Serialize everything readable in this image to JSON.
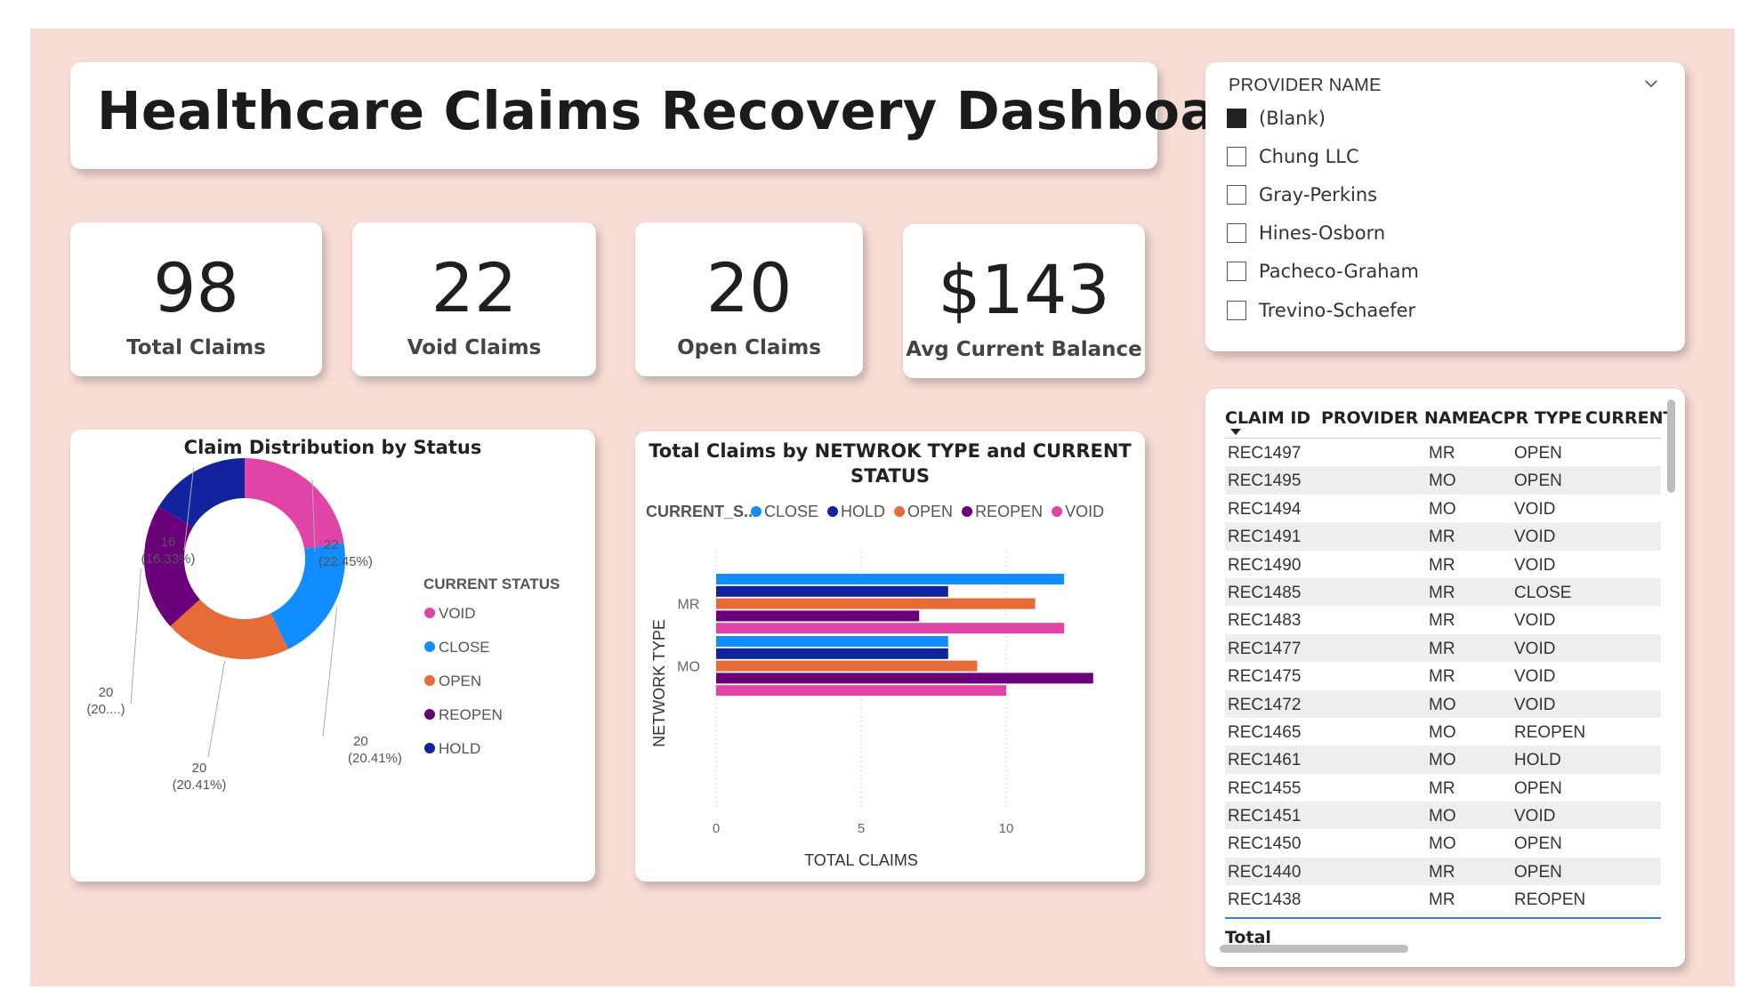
{
  "title": "Healthcare Claims Recovery Dashboard",
  "kpis": [
    {
      "value": "98",
      "label": "Total Claims"
    },
    {
      "value": "22",
      "label": "Void Claims"
    },
    {
      "value": "20",
      "label": "Open Claims"
    },
    {
      "value": "$143",
      "label": "Avg Current Balance"
    }
  ],
  "slicer": {
    "title": "PROVIDER NAME",
    "items": [
      {
        "label": "(Blank)",
        "checked": true
      },
      {
        "label": "Chung LLC",
        "checked": false
      },
      {
        "label": "Gray-Perkins",
        "checked": false
      },
      {
        "label": "Hines-Osborn",
        "checked": false
      },
      {
        "label": "Pacheco-Graham",
        "checked": false
      },
      {
        "label": "Trevino-Schaefer",
        "checked": false
      }
    ]
  },
  "colors": {
    "VOID": "#e044a7",
    "CLOSE": "#118dff",
    "OPEN": "#e66c37",
    "REOPEN": "#6b007b",
    "HOLD": "#12239e",
    "background": "#f8ddd6"
  },
  "chart_data": [
    {
      "type": "pie",
      "title": "Claim Distribution by Status",
      "legend_title": "CURRENT STATUS",
      "legend_position": "right",
      "slices": [
        {
          "name": "VOID",
          "value": 22,
          "label": "22",
          "pct_label": "(22.45%)"
        },
        {
          "name": "CLOSE",
          "value": 20,
          "label": "20",
          "pct_label": "(20.41%)"
        },
        {
          "name": "OPEN",
          "value": 20,
          "label": "20",
          "pct_label": "(20.41%)"
        },
        {
          "name": "REOPEN",
          "value": 20,
          "label": "20",
          "pct_label": "(20....)"
        },
        {
          "name": "HOLD",
          "value": 16,
          "label": "16",
          "pct_label": "(16.33%)"
        }
      ]
    },
    {
      "type": "bar",
      "orientation": "horizontal",
      "title": "Total Claims by NETWROK TYPE and CURRENT STATUS",
      "legend_title": "CURRENT_S...",
      "legend_position": "top",
      "xlabel": "TOTAL CLAIMS",
      "ylabel": "NETWORK TYPE",
      "xlim": [
        0,
        13.5
      ],
      "xticks": [
        "0",
        "5",
        "10"
      ],
      "grid": true,
      "categories": [
        "MR",
        "MO"
      ],
      "series": [
        {
          "name": "CLOSE",
          "values": [
            12,
            8
          ]
        },
        {
          "name": "HOLD",
          "values": [
            8,
            8
          ]
        },
        {
          "name": "OPEN",
          "values": [
            11,
            9
          ]
        },
        {
          "name": "REOPEN",
          "values": [
            7,
            13
          ]
        },
        {
          "name": "VOID",
          "values": [
            12,
            10
          ]
        }
      ]
    }
  ],
  "table": {
    "columns": [
      "CLAIM ID",
      "PROVIDER NAME",
      "ACPR TYPE",
      "CURRENT"
    ],
    "rows": [
      [
        "REC1497",
        "",
        "MR",
        "OPEN"
      ],
      [
        "REC1495",
        "",
        "MO",
        "OPEN"
      ],
      [
        "REC1494",
        "",
        "MO",
        "VOID"
      ],
      [
        "REC1491",
        "",
        "MR",
        "VOID"
      ],
      [
        "REC1490",
        "",
        "MR",
        "VOID"
      ],
      [
        "REC1485",
        "",
        "MR",
        "CLOSE"
      ],
      [
        "REC1483",
        "",
        "MR",
        "VOID"
      ],
      [
        "REC1477",
        "",
        "MR",
        "VOID"
      ],
      [
        "REC1475",
        "",
        "MR",
        "VOID"
      ],
      [
        "REC1472",
        "",
        "MO",
        "VOID"
      ],
      [
        "REC1465",
        "",
        "MO",
        "REOPEN"
      ],
      [
        "REC1461",
        "",
        "MO",
        "HOLD"
      ],
      [
        "REC1455",
        "",
        "MR",
        "OPEN"
      ],
      [
        "REC1451",
        "",
        "MO",
        "VOID"
      ],
      [
        "REC1450",
        "",
        "MO",
        "OPEN"
      ],
      [
        "REC1440",
        "",
        "MR",
        "OPEN"
      ],
      [
        "REC1438",
        "",
        "MR",
        "REOPEN"
      ]
    ],
    "total_label": "Total"
  }
}
